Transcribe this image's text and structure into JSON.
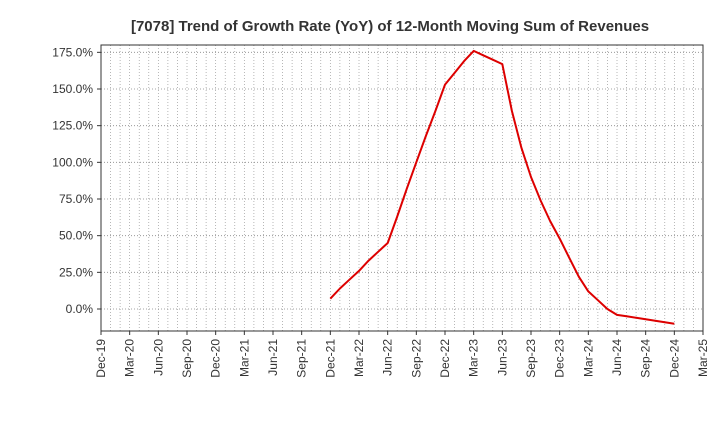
{
  "chart_data": {
    "type": "line",
    "title": "[7078]  Trend of Growth Rate (YoY) of 12-Month Moving Sum of Revenues",
    "xlabel": "",
    "ylabel": "",
    "x_tick_labels": [
      "Dec-19",
      "Mar-20",
      "Jun-20",
      "Sep-20",
      "Dec-20",
      "Mar-21",
      "Jun-21",
      "Sep-21",
      "Dec-21",
      "Mar-22",
      "Jun-22",
      "Sep-22",
      "Dec-22",
      "Mar-23",
      "Jun-23",
      "Sep-23",
      "Dec-23",
      "Mar-24",
      "Jun-24",
      "Sep-24",
      "Dec-24",
      "Mar-25"
    ],
    "y_tick_labels": [
      "0.0%",
      "25.0%",
      "50.0%",
      "75.0%",
      "100.0%",
      "125.0%",
      "150.0%",
      "175.0%"
    ],
    "y_ticks": [
      0,
      25,
      50,
      75,
      100,
      125,
      150,
      175
    ],
    "ylim": [
      -15,
      180
    ],
    "grid": true,
    "line_color": "#dd0000",
    "series": [
      {
        "x": [
          "Dec-21",
          "Jan-22",
          "Feb-22",
          "Mar-22",
          "Apr-22",
          "May-22",
          "Jun-22",
          "Jul-22",
          "Aug-22",
          "Sep-22",
          "Oct-22",
          "Nov-22",
          "Dec-22",
          "Jan-23",
          "Feb-23",
          "Mar-23",
          "Apr-23",
          "May-23",
          "Jun-23",
          "Jul-23",
          "Aug-23",
          "Sep-23",
          "Oct-23",
          "Nov-23",
          "Dec-23",
          "Jan-24",
          "Feb-24",
          "Mar-24",
          "Apr-24",
          "May-24",
          "Jun-24",
          "Jul-24",
          "Aug-24",
          "Sep-24",
          "Oct-24",
          "Nov-24",
          "Dec-24"
        ],
        "values": [
          7,
          14,
          20,
          26,
          33,
          39,
          45,
          63,
          82,
          100,
          118,
          135,
          153,
          161,
          169,
          176,
          173,
          170,
          167,
          135,
          110,
          90,
          74,
          60,
          48,
          35,
          22,
          12,
          6,
          0,
          -4,
          -5,
          -6,
          -7,
          -8,
          -9,
          -10
        ]
      }
    ]
  }
}
